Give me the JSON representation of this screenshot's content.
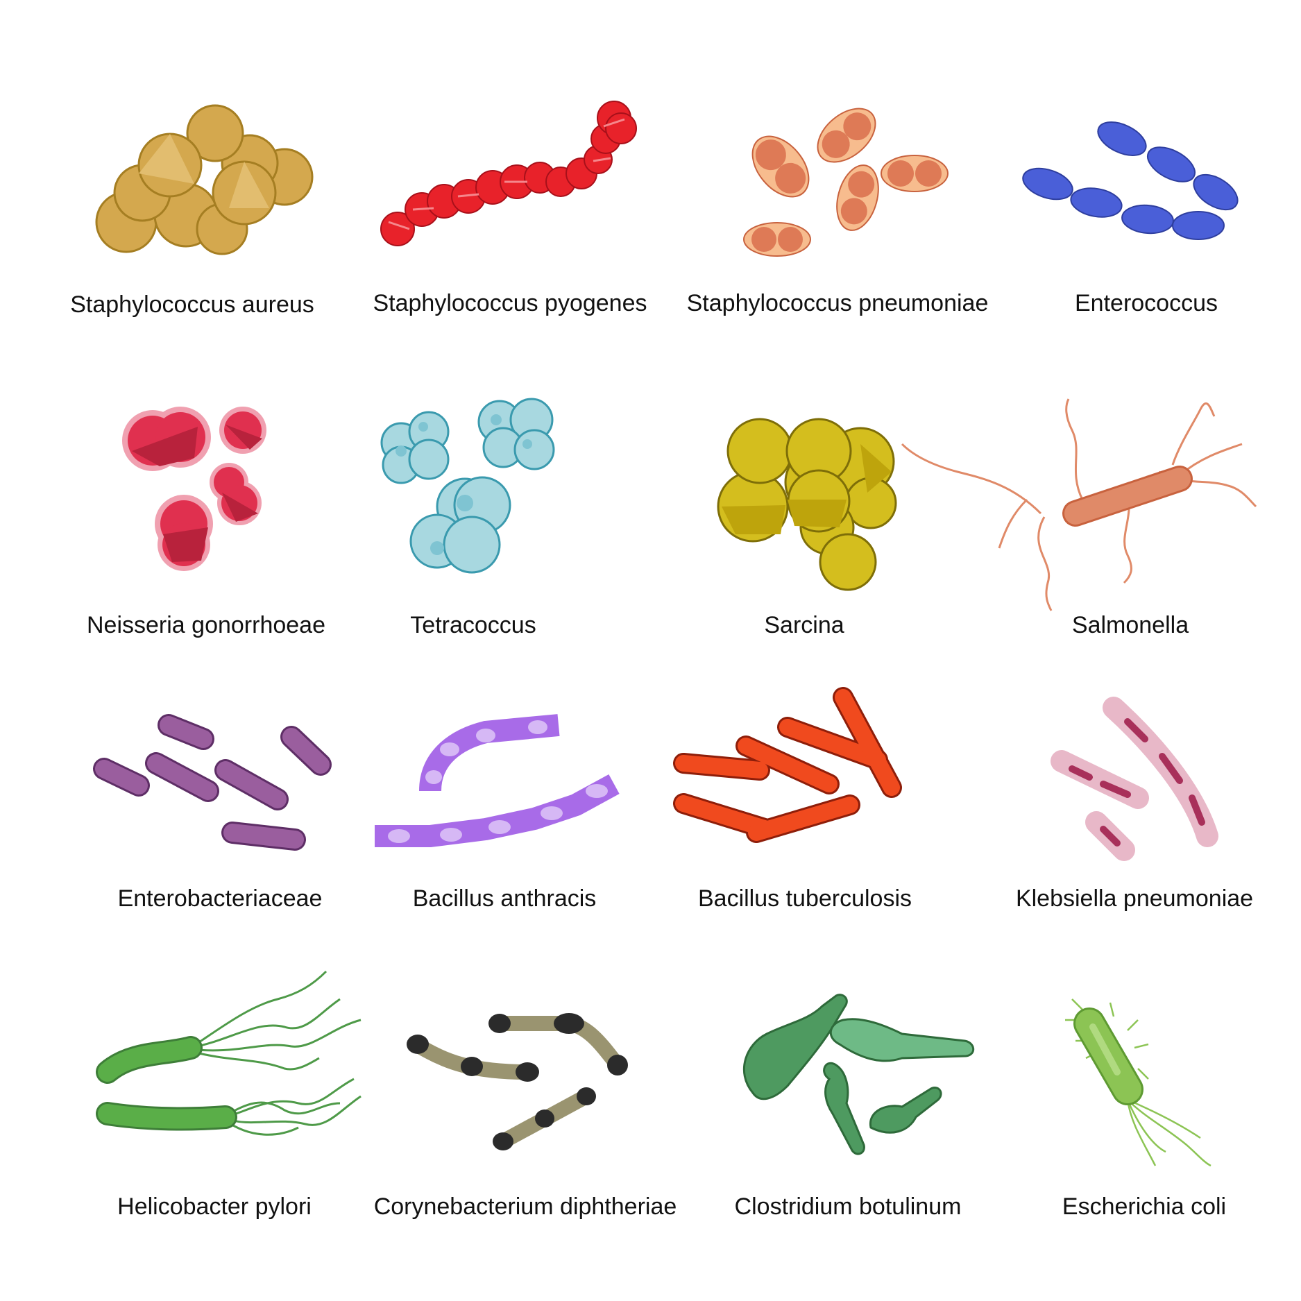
{
  "bacteria": [
    {
      "id": "staph-aureus",
      "name": "Staphylococcus aureus",
      "icon": "staphylococcus-aureus-icon",
      "color": "#D4A84E"
    },
    {
      "id": "staph-pyogenes",
      "name": "Staphylococcus pyogenes",
      "icon": "staphylococcus-pyogenes-icon",
      "color": "#E8222A"
    },
    {
      "id": "staph-pneumoniae",
      "name": "Staphylococcus pneumoniae",
      "icon": "staphylococcus-pneumoniae-icon",
      "color": "#E0795A"
    },
    {
      "id": "enterococcus",
      "name": "Enterococcus",
      "icon": "enterococcus-icon",
      "color": "#4A5FD8"
    },
    {
      "id": "neisseria",
      "name": "Neisseria gonorrhoeae",
      "icon": "neisseria-gonorrhoeae-icon",
      "color": "#E0304F"
    },
    {
      "id": "tetracoccus",
      "name": "Tetracoccus",
      "icon": "tetracoccus-icon",
      "color": "#A8D8E0"
    },
    {
      "id": "sarcina",
      "name": "Sarcina",
      "icon": "sarcina-icon",
      "color": "#D4BE1E"
    },
    {
      "id": "salmonella",
      "name": "Salmonella",
      "icon": "salmonella-icon",
      "color": "#E08A68"
    },
    {
      "id": "enterobacteriaceae",
      "name": "Enterobacteriaceae",
      "icon": "enterobacteriaceae-icon",
      "color": "#9A5E9E"
    },
    {
      "id": "anthracis",
      "name": "Bacillus anthracis",
      "icon": "bacillus-anthracis-icon",
      "color": "#A86BE8"
    },
    {
      "id": "tuberculosis",
      "name": "Bacillus tuberculosis",
      "icon": "bacillus-tuberculosis-icon",
      "color": "#F04A1E"
    },
    {
      "id": "klebsiella",
      "name": "Klebsiella pneumoniae",
      "icon": "klebsiella-pneumoniae-icon",
      "color": "#E8B8C8"
    },
    {
      "id": "helicobacter",
      "name": "Helicobacter pylori",
      "icon": "helicobacter-pylori-icon",
      "color": "#5AAE48"
    },
    {
      "id": "corynebacterium",
      "name": "Corynebacterium diphtheriae",
      "icon": "corynebacterium-diphtheriae-icon",
      "color": "#9A9470"
    },
    {
      "id": "clostridium",
      "name": "Clostridium botulinum",
      "icon": "clostridium-botulinum-icon",
      "color": "#4E9A60"
    },
    {
      "id": "ecoli",
      "name": "Escherichia coli",
      "icon": "escherichia-coli-icon",
      "color": "#8CC454"
    }
  ]
}
